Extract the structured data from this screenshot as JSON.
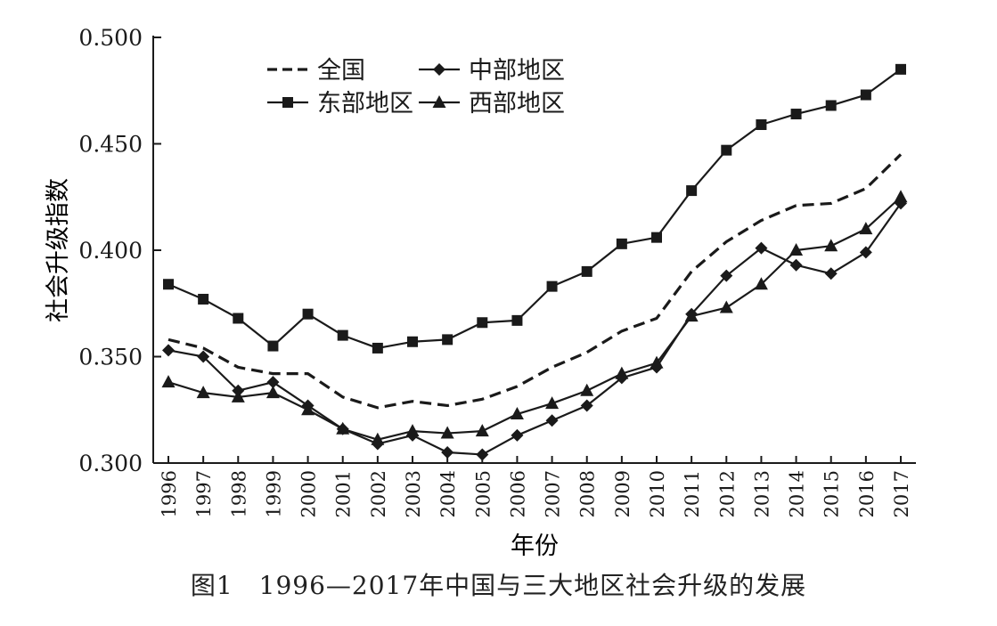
{
  "chart_data": {
    "type": "line",
    "caption": "图1　1996—2017年中国与三大地区社会升级的发展",
    "xlabel": "年份",
    "ylabel": "社会升级指数",
    "ylim": [
      0.3,
      0.5
    ],
    "y_ticks": [
      "0.300",
      "0.350",
      "0.400",
      "0.450",
      "0.500"
    ],
    "categories": [
      "1996",
      "1997",
      "1998",
      "1999",
      "2000",
      "2001",
      "2002",
      "2003",
      "2004",
      "2005",
      "2006",
      "2007",
      "2008",
      "2009",
      "2010",
      "2011",
      "2012",
      "2013",
      "2014",
      "2015",
      "2016",
      "2017"
    ],
    "legend_position": "top-left",
    "grid": false,
    "series": [
      {
        "name": "全国",
        "style": "dashed",
        "marker": "none",
        "values": [
          0.358,
          0.354,
          0.345,
          0.342,
          0.342,
          0.331,
          0.326,
          0.329,
          0.327,
          0.33,
          0.336,
          0.345,
          0.352,
          0.362,
          0.368,
          0.39,
          0.404,
          0.414,
          0.421,
          0.422,
          0.429,
          0.445
        ]
      },
      {
        "name": "中部地区",
        "style": "solid",
        "marker": "diamond",
        "values": [
          0.353,
          0.35,
          0.334,
          0.338,
          0.327,
          0.316,
          0.309,
          0.313,
          0.305,
          0.304,
          0.313,
          0.32,
          0.327,
          0.34,
          0.345,
          0.37,
          0.388,
          0.401,
          0.393,
          0.389,
          0.399,
          0.422
        ]
      },
      {
        "name": "东部地区",
        "style": "solid",
        "marker": "square",
        "values": [
          0.384,
          0.377,
          0.368,
          0.355,
          0.37,
          0.36,
          0.354,
          0.357,
          0.358,
          0.366,
          0.367,
          0.383,
          0.39,
          0.403,
          0.406,
          0.428,
          0.447,
          0.459,
          0.464,
          0.468,
          0.473,
          0.485
        ]
      },
      {
        "name": "西部地区",
        "style": "solid",
        "marker": "triangle",
        "values": [
          0.338,
          0.333,
          0.331,
          0.333,
          0.325,
          0.316,
          0.311,
          0.315,
          0.314,
          0.315,
          0.323,
          0.328,
          0.334,
          0.342,
          0.347,
          0.369,
          0.373,
          0.384,
          0.4,
          0.402,
          0.41,
          0.425
        ]
      }
    ]
  }
}
